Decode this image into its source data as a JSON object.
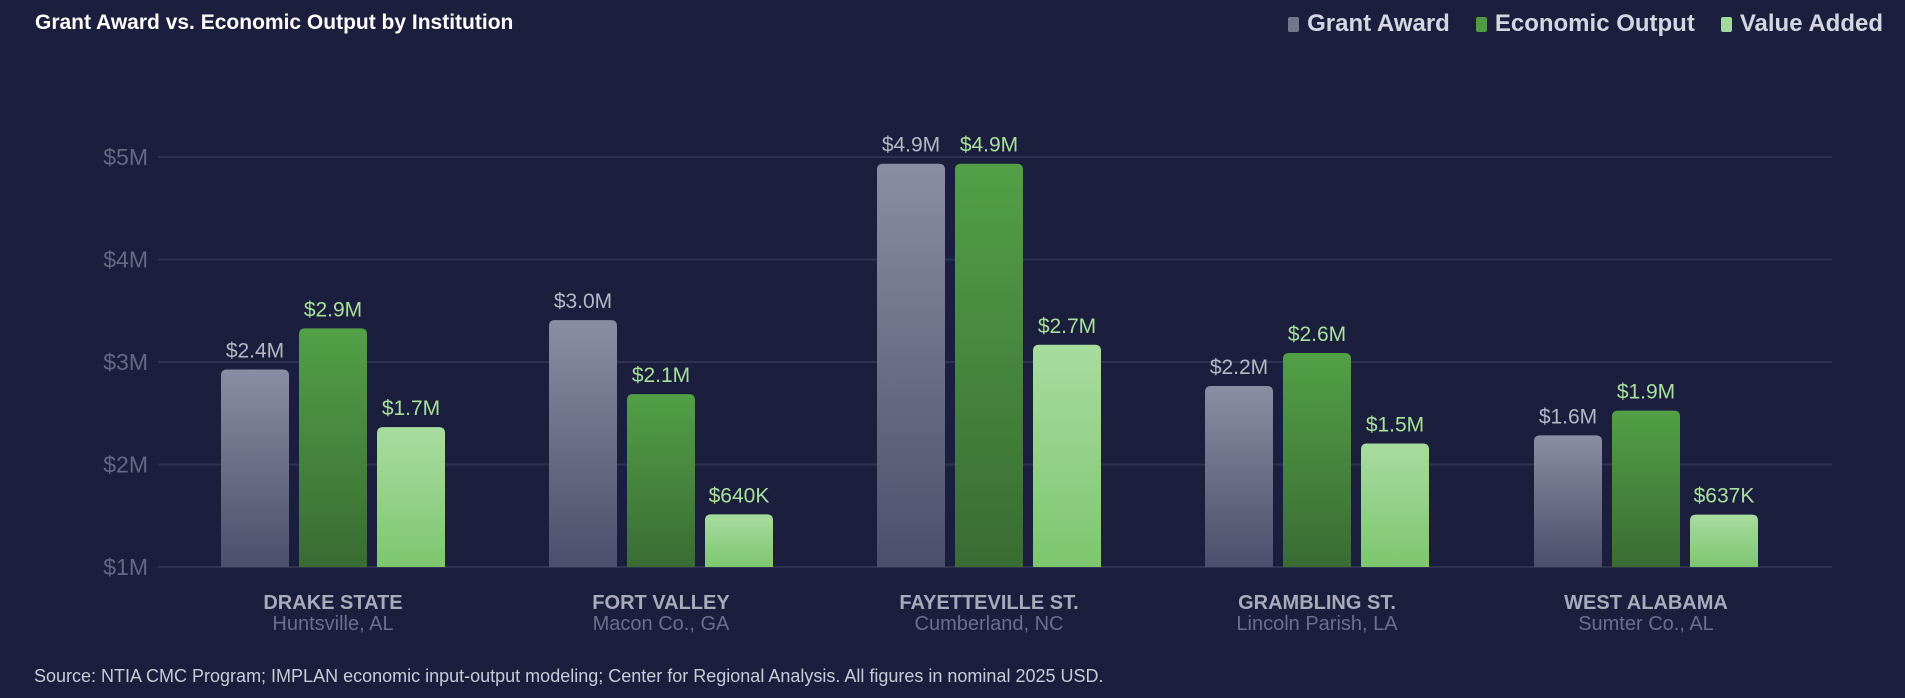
{
  "title": "Grant Award vs. Economic Output by Institution",
  "legend": [
    {
      "label": "Grant Award",
      "color": "#74778c"
    },
    {
      "label": "Economic Output",
      "color": "#4f9a45"
    },
    {
      "label": "Value Added",
      "color": "#a3d99a"
    }
  ],
  "source": "Source: NTIA CMC Program; IMPLAN economic input-output modeling; Center for Regional Analysis. All figures in nominal 2025 USD.",
  "chart_data": {
    "type": "bar",
    "title": "Grant Award vs. Economic Output by Institution",
    "y_tick_labels": [
      "$1M",
      "$2M",
      "$3M",
      "$4M",
      "$5M"
    ],
    "ylim": [
      0,
      5
    ],
    "grid": true,
    "legend_position": "top-right",
    "categories": [
      {
        "name": "DRAKE STATE",
        "sub": "Huntsville, AL"
      },
      {
        "name": "FORT VALLEY",
        "sub": "Macon Co., GA"
      },
      {
        "name": "FAYETTEVILLE ST.",
        "sub": "Cumberland, NC"
      },
      {
        "name": "GRAMBLING ST.",
        "sub": "Lincoln Parish, LA"
      },
      {
        "name": "WEST ALABAMA",
        "sub": "Sumter Co., AL"
      }
    ],
    "series": [
      {
        "name": "Grant Award",
        "values": [
          2.4,
          3.0,
          4.9,
          2.2,
          1.6
        ],
        "labels": [
          "$2.4M",
          "$3.0M",
          "$4.9M",
          "$2.2M",
          "$1.6M"
        ]
      },
      {
        "name": "Economic Output",
        "values": [
          2.9,
          2.1,
          4.9,
          2.6,
          1.9
        ],
        "labels": [
          "$2.9M",
          "$2.1M",
          "$4.9M",
          "$2.6M",
          "$1.9M"
        ]
      },
      {
        "name": "Value Added",
        "values": [
          1.7,
          0.64,
          2.7,
          1.5,
          0.637
        ],
        "labels": [
          "$1.7M",
          "$640K",
          "$2.7M",
          "$1.5M",
          "$637K"
        ]
      }
    ]
  }
}
